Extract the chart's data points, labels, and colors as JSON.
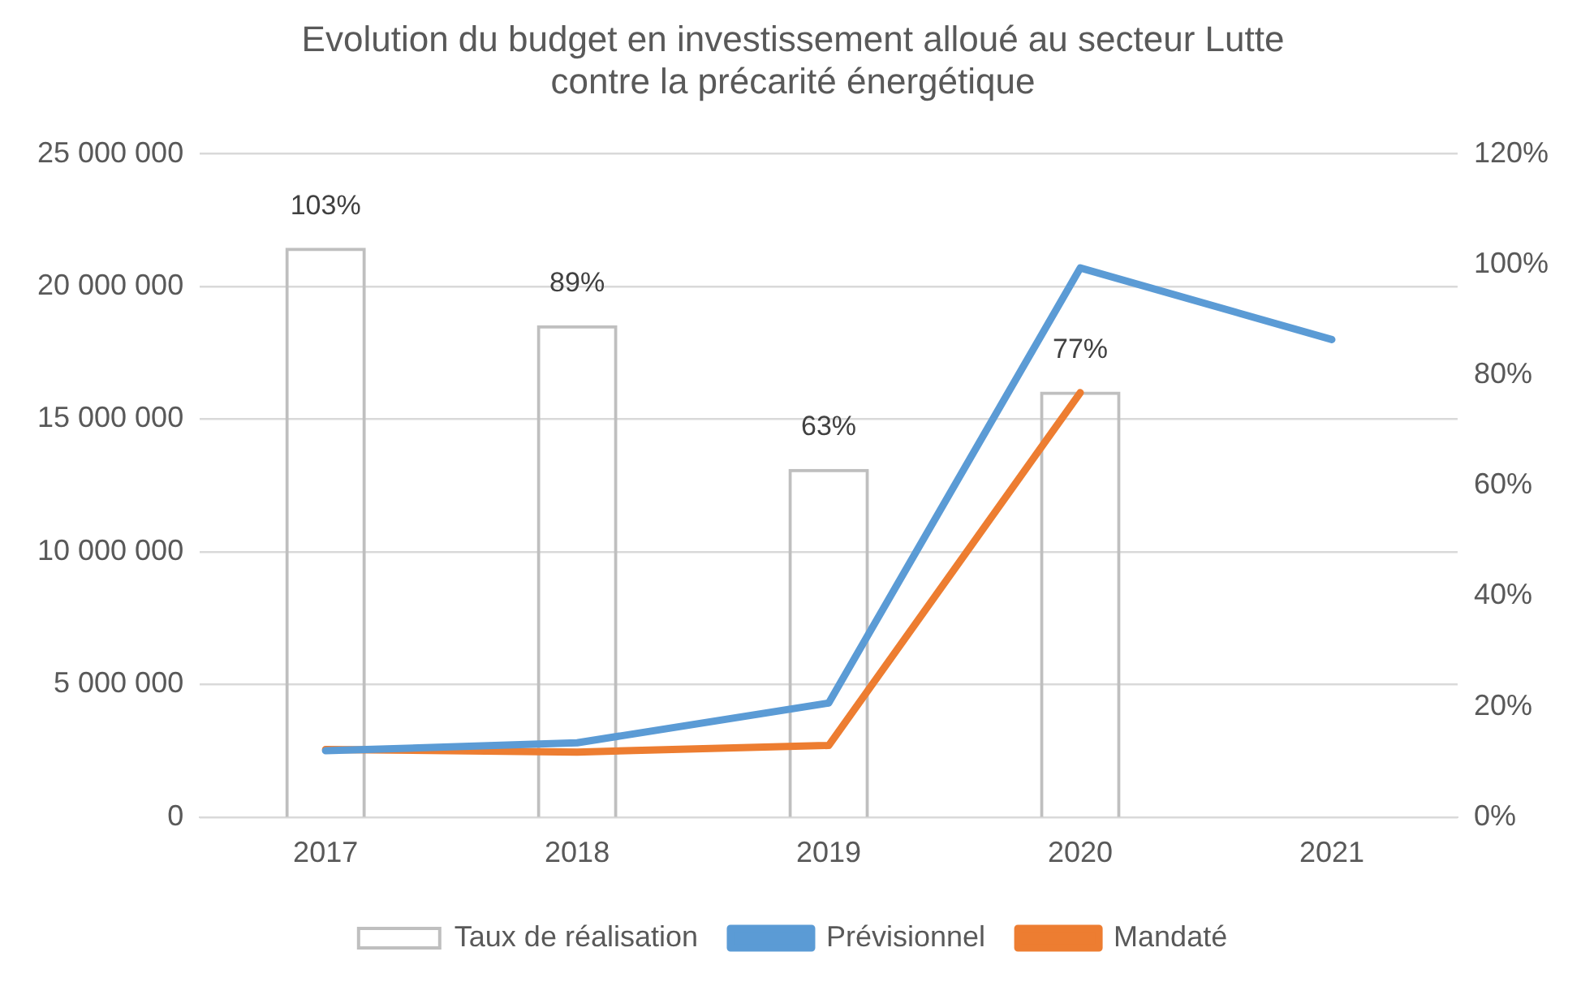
{
  "chart_data": {
    "type": "bar",
    "title": "Evolution du budget en investissement alloué au secteur Lutte contre la précarité énergétique",
    "categories": [
      "2017",
      "2018",
      "2019",
      "2020",
      "2021"
    ],
    "series": [
      {
        "name": "Taux de réalisation",
        "axis": "y2",
        "color": "#bfbfbf",
        "values": [
          103,
          89,
          63,
          77,
          null
        ],
        "value_labels": [
          "103%",
          "89%",
          "63%",
          "77%",
          null
        ]
      },
      {
        "name": "Prévisionnel",
        "type": "line",
        "color": "#5b9bd5",
        "values": [
          2500000,
          2800000,
          4300000,
          20700000,
          18000000
        ]
      },
      {
        "name": "Mandaté",
        "type": "line",
        "color": "#ed7d31",
        "values": [
          2550000,
          2450000,
          2700000,
          16000000,
          null
        ]
      }
    ],
    "ylim": [
      0,
      25000000
    ],
    "yticks": [
      {
        "value": 0,
        "label": "0"
      },
      {
        "value": 5000000,
        "label": "5 000 000"
      },
      {
        "value": 10000000,
        "label": "10 000 000"
      },
      {
        "value": 15000000,
        "label": "15 000 000"
      },
      {
        "value": 20000000,
        "label": "20 000 000"
      },
      {
        "value": 25000000,
        "label": "25 000 000"
      }
    ],
    "y2lim": [
      0,
      120
    ],
    "y2ticks": [
      {
        "value": 0,
        "label": "0%"
      },
      {
        "value": 20,
        "label": "20%"
      },
      {
        "value": 40,
        "label": "40%"
      },
      {
        "value": 60,
        "label": "60%"
      },
      {
        "value": 80,
        "label": "80%"
      },
      {
        "value": 100,
        "label": "100%"
      },
      {
        "value": 120,
        "label": "120%"
      }
    ],
    "grid": "y",
    "legend": "bottom",
    "marker": "none",
    "line_style": "solid"
  }
}
